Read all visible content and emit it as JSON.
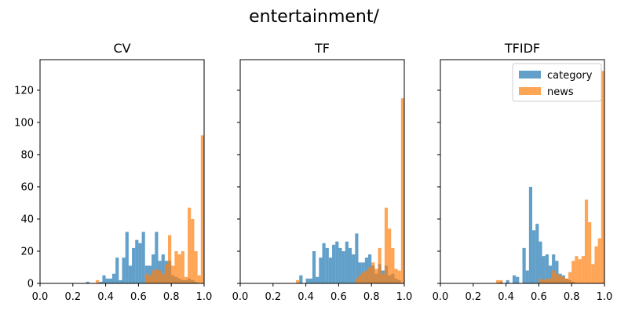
{
  "figure_title": "entertainment/",
  "chart_data": [
    {
      "type": "histogram",
      "title": "CV",
      "xlim": [
        0.0,
        1.0
      ],
      "ylim": [
        0,
        139
      ],
      "x_ticks": [
        "0.0",
        "0.2",
        "0.4",
        "0.6",
        "0.8",
        "1.0"
      ],
      "y_ticks": [
        "0",
        "20",
        "40",
        "60",
        "80",
        "100",
        "120"
      ],
      "show_y_tick_labels": true,
      "legend": false,
      "bin_width": 0.02,
      "series": [
        {
          "name": "category",
          "color": "#1f77b4",
          "bins": [
            [
              0.28,
              1
            ],
            [
              0.36,
              1
            ],
            [
              0.38,
              5
            ],
            [
              0.4,
              3
            ],
            [
              0.42,
              3
            ],
            [
              0.44,
              6
            ],
            [
              0.46,
              16
            ],
            [
              0.48,
              2
            ],
            [
              0.5,
              16
            ],
            [
              0.52,
              32
            ],
            [
              0.54,
              11
            ],
            [
              0.56,
              22
            ],
            [
              0.58,
              27
            ],
            [
              0.6,
              25
            ],
            [
              0.62,
              32
            ],
            [
              0.64,
              11
            ],
            [
              0.66,
              11
            ],
            [
              0.68,
              18
            ],
            [
              0.7,
              32
            ],
            [
              0.72,
              14
            ],
            [
              0.74,
              18
            ],
            [
              0.76,
              14
            ],
            [
              0.78,
              14
            ],
            [
              0.8,
              5
            ],
            [
              0.82,
              4
            ],
            [
              0.84,
              3
            ],
            [
              0.86,
              2
            ],
            [
              0.88,
              2
            ],
            [
              0.9,
              3
            ],
            [
              0.92,
              2
            ],
            [
              0.94,
              1
            ]
          ]
        },
        {
          "name": "news",
          "color": "#ff7f0e",
          "bins": [
            [
              0.34,
              2
            ],
            [
              0.64,
              6
            ],
            [
              0.66,
              5
            ],
            [
              0.68,
              8
            ],
            [
              0.7,
              9
            ],
            [
              0.72,
              8
            ],
            [
              0.74,
              6
            ],
            [
              0.76,
              12
            ],
            [
              0.78,
              30
            ],
            [
              0.8,
              11
            ],
            [
              0.82,
              20
            ],
            [
              0.84,
              18
            ],
            [
              0.86,
              20
            ],
            [
              0.88,
              4
            ],
            [
              0.9,
              47
            ],
            [
              0.92,
              40
            ],
            [
              0.94,
              20
            ],
            [
              0.96,
              5
            ],
            [
              0.98,
              92
            ]
          ]
        }
      ]
    },
    {
      "type": "histogram",
      "title": "TF",
      "xlim": [
        0.0,
        1.0
      ],
      "ylim": [
        0,
        139
      ],
      "x_ticks": [
        "0.0",
        "0.2",
        "0.4",
        "0.6",
        "0.8",
        "1.0"
      ],
      "y_ticks": [
        "0",
        "20",
        "40",
        "60",
        "80",
        "100",
        "120"
      ],
      "show_y_tick_labels": false,
      "legend": false,
      "bin_width": 0.02,
      "series": [
        {
          "name": "category",
          "color": "#1f77b4",
          "bins": [
            [
              0.36,
              5
            ],
            [
              0.4,
              3
            ],
            [
              0.42,
              3
            ],
            [
              0.44,
              20
            ],
            [
              0.46,
              4
            ],
            [
              0.48,
              16
            ],
            [
              0.5,
              25
            ],
            [
              0.52,
              22
            ],
            [
              0.54,
              16
            ],
            [
              0.56,
              24
            ],
            [
              0.58,
              26
            ],
            [
              0.6,
              22
            ],
            [
              0.62,
              20
            ],
            [
              0.64,
              26
            ],
            [
              0.66,
              22
            ],
            [
              0.68,
              18
            ],
            [
              0.7,
              31
            ],
            [
              0.72,
              13
            ],
            [
              0.74,
              13
            ],
            [
              0.76,
              16
            ],
            [
              0.78,
              18
            ],
            [
              0.8,
              11
            ],
            [
              0.82,
              6
            ],
            [
              0.84,
              12
            ],
            [
              0.86,
              8
            ],
            [
              0.88,
              11
            ],
            [
              0.9,
              5
            ],
            [
              0.92,
              6
            ],
            [
              0.94,
              3
            ],
            [
              0.96,
              2
            ]
          ]
        },
        {
          "name": "news",
          "color": "#ff7f0e",
          "bins": [
            [
              0.34,
              2
            ],
            [
              0.7,
              3
            ],
            [
              0.72,
              5
            ],
            [
              0.74,
              7
            ],
            [
              0.76,
              8
            ],
            [
              0.78,
              10
            ],
            [
              0.8,
              13
            ],
            [
              0.82,
              9
            ],
            [
              0.84,
              22
            ],
            [
              0.86,
              6
            ],
            [
              0.88,
              47
            ],
            [
              0.9,
              34
            ],
            [
              0.92,
              22
            ],
            [
              0.94,
              9
            ],
            [
              0.96,
              8
            ],
            [
              0.98,
              115
            ]
          ]
        }
      ]
    },
    {
      "type": "histogram",
      "title": "TFIDF",
      "xlim": [
        0.0,
        1.0
      ],
      "ylim": [
        0,
        139
      ],
      "x_ticks": [
        "0.0",
        "0.2",
        "0.4",
        "0.6",
        "0.8",
        "1.0"
      ],
      "y_ticks": [
        "0",
        "20",
        "40",
        "60",
        "80",
        "100",
        "120"
      ],
      "show_y_tick_labels": false,
      "legend": true,
      "legend_position": "upper-right",
      "bin_width": 0.02,
      "series": [
        {
          "name": "category",
          "color": "#1f77b4",
          "bins": [
            [
              0.36,
              1
            ],
            [
              0.4,
              2
            ],
            [
              0.44,
              5
            ],
            [
              0.46,
              4
            ],
            [
              0.5,
              22
            ],
            [
              0.52,
              8
            ],
            [
              0.54,
              60
            ],
            [
              0.56,
              33
            ],
            [
              0.58,
              37
            ],
            [
              0.6,
              26
            ],
            [
              0.62,
              17
            ],
            [
              0.64,
              18
            ],
            [
              0.66,
              11
            ],
            [
              0.68,
              18
            ],
            [
              0.7,
              14
            ],
            [
              0.72,
              6
            ],
            [
              0.74,
              5
            ],
            [
              0.76,
              3
            ],
            [
              0.78,
              2
            ],
            [
              0.8,
              1
            ]
          ]
        },
        {
          "name": "news",
          "color": "#ff7f0e",
          "bins": [
            [
              0.34,
              2
            ],
            [
              0.36,
              2
            ],
            [
              0.6,
              3
            ],
            [
              0.62,
              2
            ],
            [
              0.64,
              3
            ],
            [
              0.66,
              3
            ],
            [
              0.68,
              8
            ],
            [
              0.7,
              6
            ],
            [
              0.72,
              5
            ],
            [
              0.74,
              4
            ],
            [
              0.76,
              3
            ],
            [
              0.78,
              7
            ],
            [
              0.8,
              14
            ],
            [
              0.82,
              17
            ],
            [
              0.84,
              15
            ],
            [
              0.86,
              17
            ],
            [
              0.88,
              52
            ],
            [
              0.9,
              38
            ],
            [
              0.92,
              12
            ],
            [
              0.94,
              23
            ],
            [
              0.96,
              28
            ],
            [
              0.98,
              132
            ]
          ]
        }
      ]
    }
  ]
}
